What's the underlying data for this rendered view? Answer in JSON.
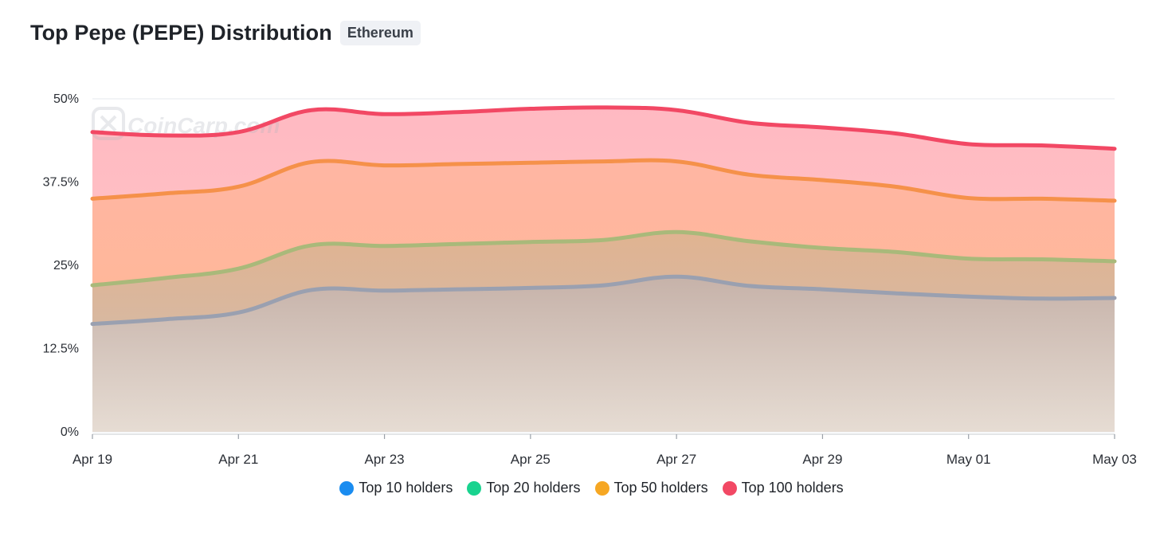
{
  "header": {
    "title": "Top Pepe (PEPE) Distribution",
    "network_badge": "Ethereum"
  },
  "watermark": {
    "text": "CoinCarp.com",
    "icon": "coincarp-logo-icon"
  },
  "chart_data": {
    "type": "area",
    "x": [
      "Apr 19",
      "Apr 20",
      "Apr 21",
      "Apr 22",
      "Apr 23",
      "Apr 24",
      "Apr 25",
      "Apr 26",
      "Apr 27",
      "Apr 28",
      "Apr 29",
      "Apr 30",
      "May 01",
      "May 02",
      "May 03"
    ],
    "x_tick_labels": [
      "Apr 19",
      "Apr 21",
      "Apr 23",
      "Apr 25",
      "Apr 27",
      "Apr 29",
      "May 01",
      "May 03"
    ],
    "y_tick_labels": [
      "0%",
      "12.5%",
      "25%",
      "37.5%",
      "50%"
    ],
    "ylim": [
      0,
      50
    ],
    "grid": true,
    "legend_position": "bottom",
    "series": [
      {
        "name": "Top 10 holders",
        "color": "#9aa0b0",
        "legend_color": "#1a8cf0",
        "values": [
          16.2,
          16.9,
          17.9,
          21.3,
          21.2,
          21.4,
          21.6,
          22.0,
          23.3,
          21.9,
          21.4,
          20.8,
          20.3,
          20.0,
          20.1
        ]
      },
      {
        "name": "Top 20 holders",
        "color": "#a9b97a",
        "legend_color": "#19d38f",
        "values": [
          22.0,
          23.1,
          24.5,
          28.0,
          27.9,
          28.2,
          28.5,
          28.8,
          30.0,
          28.6,
          27.6,
          27.0,
          26.0,
          25.9,
          25.6
        ]
      },
      {
        "name": "Top 50 holders",
        "color": "#f5914a",
        "legend_color": "#f6a723",
        "values": [
          35.0,
          35.8,
          36.8,
          40.5,
          40.0,
          40.2,
          40.4,
          40.6,
          40.6,
          38.6,
          37.8,
          36.8,
          35.1,
          35.0,
          34.7
        ]
      },
      {
        "name": "Top 100 holders",
        "color": "#f24864",
        "legend_color": "#f24864",
        "values": [
          45.0,
          44.5,
          45.0,
          48.3,
          47.7,
          48.0,
          48.5,
          48.7,
          48.3,
          46.4,
          45.7,
          44.8,
          43.2,
          43.0,
          42.5
        ]
      }
    ]
  }
}
